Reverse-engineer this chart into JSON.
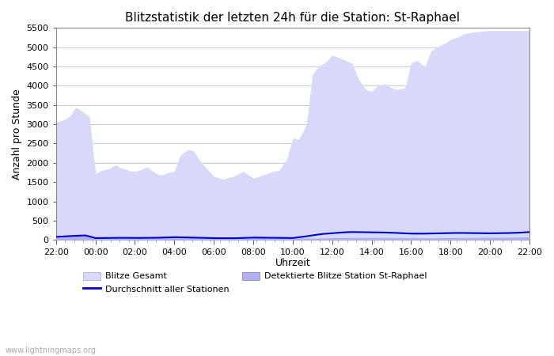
{
  "title": "Blitzstatistik der letzten 24h für die Station: St-Raphael",
  "xlabel": "Uhrzeit",
  "ylabel": "Anzahl pro Stunde",
  "ylim": [
    0,
    5500
  ],
  "yticks": [
    0,
    500,
    1000,
    1500,
    2000,
    2500,
    3000,
    3500,
    4000,
    4500,
    5000,
    5500
  ],
  "xtick_labels": [
    "22:00",
    "00:00",
    "02:00",
    "04:00",
    "06:00",
    "08:00",
    "10:00",
    "12:00",
    "14:00",
    "16:00",
    "18:00",
    "20:00",
    "22:00"
  ],
  "bg_color": "#ffffff",
  "plot_bg_color": "#ffffff",
  "grid_color": "#cccccc",
  "fill_gesamt_color": "#d8d8f8",
  "fill_station_color": "#b0b0ee",
  "line_color": "#0000cc",
  "watermark": "www.lightningmaps.org",
  "legend_gesamt": "Blitze Gesamt",
  "legend_avg": "Durchschnitt aller Stationen",
  "legend_station": "Detektierte Blitze Station St-Raphael",
  "gesamt_xp": [
    0,
    0.3,
    0.7,
    1.0,
    1.3,
    1.7,
    2.0,
    2.3,
    2.7,
    3.0,
    3.3,
    3.7,
    4.0,
    4.3,
    4.6,
    5.0,
    5.3,
    5.7,
    6.0,
    6.3,
    6.7,
    7.0,
    7.3,
    7.7,
    8.0,
    8.5,
    9.0,
    9.5,
    10.0,
    10.3,
    10.7,
    11.0,
    11.3,
    11.7,
    12.0,
    12.3,
    12.7,
    13.0,
    13.3,
    13.7,
    14.0,
    14.2,
    14.5,
    14.8,
    15.0,
    15.3,
    15.7,
    16.0,
    16.3,
    16.7,
    17.0,
    17.3,
    17.7,
    18.0,
    18.3,
    18.7,
    19.0,
    19.3,
    19.7,
    20.0,
    20.3,
    20.7,
    21.0,
    21.3,
    21.7,
    22.0,
    22.5,
    23.0,
    23.5,
    24.0
  ],
  "gesamt_yp": [
    3050,
    3100,
    3200,
    3450,
    3350,
    3200,
    1720,
    1800,
    1850,
    1950,
    1870,
    1800,
    1780,
    1820,
    1900,
    1750,
    1680,
    1750,
    1780,
    2200,
    2350,
    2300,
    2050,
    1820,
    1650,
    1580,
    1650,
    1780,
    1600,
    1650,
    1720,
    1780,
    1800,
    2100,
    2650,
    2600,
    3000,
    4300,
    4500,
    4620,
    4800,
    4760,
    4700,
    4620,
    4600,
    4200,
    3900,
    3850,
    4000,
    4050,
    3950,
    3900,
    3950,
    4600,
    4650,
    4500,
    4900,
    5000,
    5100,
    5200,
    5250,
    5350,
    5380,
    5400,
    5420,
    5430,
    5430,
    5430,
    5430,
    5430
  ],
  "station_xp": [
    0,
    0.5,
    1.0,
    1.5,
    2.0,
    2.5,
    3.0,
    3.5,
    4.0,
    5.0,
    6.0,
    7.0,
    8.0,
    9.0,
    10.0,
    11.0,
    12.0,
    13.0,
    14.0,
    15.0,
    16.0,
    17.0,
    18.0,
    19.0,
    20.0,
    21.0,
    22.0,
    23.0,
    24.0
  ],
  "station_yp": [
    80,
    95,
    105,
    115,
    50,
    55,
    55,
    58,
    55,
    55,
    70,
    62,
    48,
    45,
    60,
    55,
    48,
    45,
    55,
    60,
    65,
    62,
    58,
    52,
    58,
    62,
    68,
    72,
    78
  ],
  "avg_xp": [
    0,
    0.5,
    1.0,
    1.5,
    2.0,
    2.5,
    3.0,
    3.5,
    4.0,
    5.0,
    6.0,
    7.0,
    8.0,
    9.0,
    10.0,
    11.0,
    11.5,
    12.0,
    12.5,
    13.0,
    13.5,
    14.0,
    14.5,
    15.0,
    15.5,
    16.0,
    16.5,
    17.0,
    17.5,
    18.0,
    18.5,
    19.0,
    19.5,
    20.0,
    20.5,
    21.0,
    21.5,
    22.0,
    22.5,
    23.0,
    23.5,
    24.0
  ],
  "avg_yp": [
    80,
    95,
    108,
    118,
    48,
    52,
    55,
    56,
    52,
    55,
    72,
    62,
    46,
    44,
    62,
    56,
    52,
    50,
    80,
    120,
    155,
    175,
    195,
    205,
    200,
    198,
    195,
    188,
    175,
    165,
    162,
    168,
    175,
    180,
    182,
    178,
    175,
    172,
    175,
    180,
    188,
    205
  ]
}
